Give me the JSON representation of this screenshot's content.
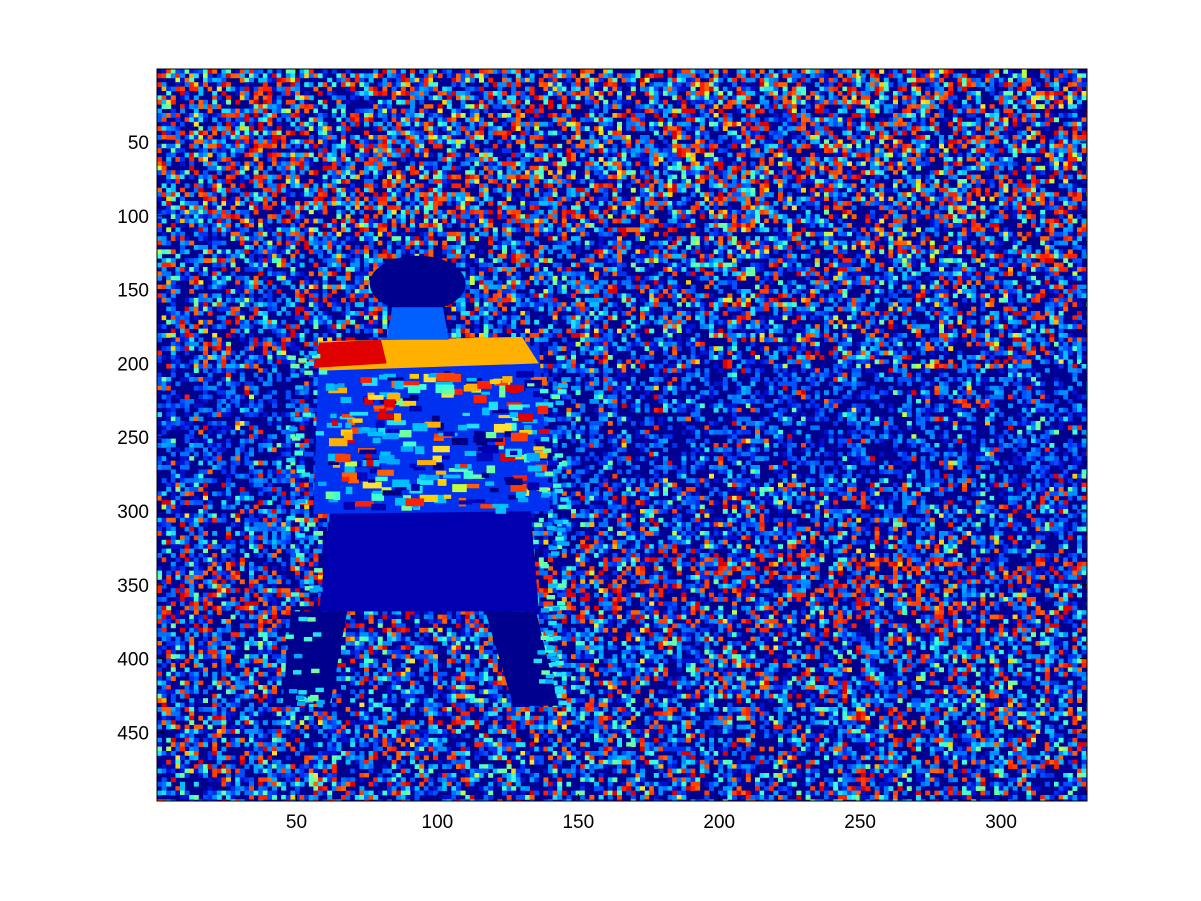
{
  "chart_data": {
    "type": "heatmap",
    "title": "",
    "xlabel": "",
    "ylabel": "",
    "colormap": "jet",
    "image_size": [
      330,
      496
    ],
    "xlim": [
      0.5,
      330.5
    ],
    "ylim": [
      0.5,
      496.5
    ],
    "y_reversed": true,
    "xticks": [
      50,
      100,
      150,
      200,
      250,
      300
    ],
    "yticks": [
      50,
      100,
      150,
      200,
      250,
      300,
      350,
      400,
      450
    ],
    "xtick_labels": [
      "50",
      "100",
      "150",
      "200",
      "250",
      "300"
    ],
    "ytick_labels": [
      "50",
      "100",
      "150",
      "200",
      "250",
      "300",
      "350",
      "400",
      "450"
    ],
    "grid": false,
    "content": "pseudo-colored photograph of a child standing in a grassy field in front of trees",
    "colors": {
      "low": "#00008f",
      "mid_low": "#0060ff",
      "mid": "#40ffc0",
      "mid_high": "#ffc000",
      "high": "#ff3000"
    }
  }
}
